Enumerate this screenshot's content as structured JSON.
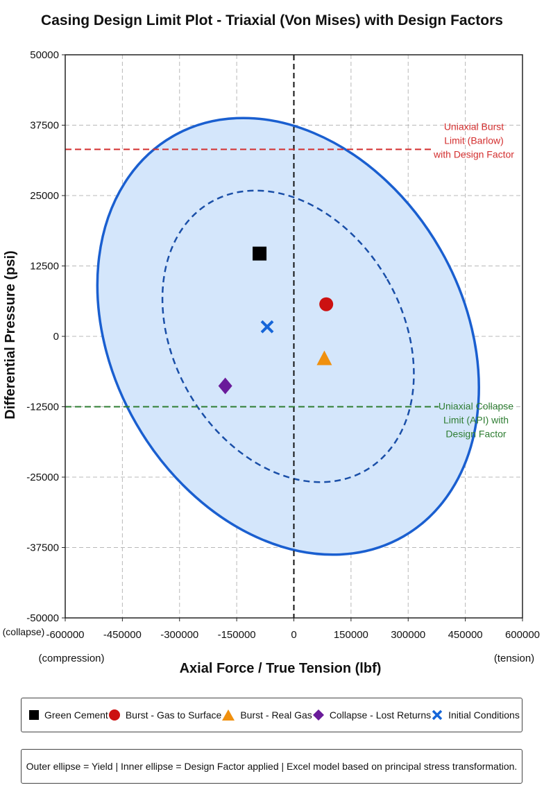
{
  "chart_data": {
    "type": "scatter",
    "title": "Casing Design Limit Plot - Triaxial (Von Mises) with Design Factors",
    "xlabel": "Axial Force / True Tension (lbf)",
    "ylabel": "Differential Pressure (psi)",
    "xlim": [
      -600000,
      600000
    ],
    "ylim": [
      -50000,
      50000
    ],
    "x_ticks": [
      -600000,
      -450000,
      -300000,
      -150000,
      0,
      150000,
      300000,
      450000,
      600000
    ],
    "y_ticks": [
      50000,
      37500,
      25000,
      12500,
      0,
      -12500,
      -25000,
      -37500,
      -50000
    ],
    "x_tick_labels": [
      "-600000",
      "-450000",
      "-300000",
      "-150000",
      "0",
      "150000",
      "300000",
      "450000",
      "600000"
    ],
    "y_tick_labels": [
      "50000",
      "37500",
      "25000",
      "12500",
      "0",
      "-12500",
      "-25000",
      "-37500",
      "-50000"
    ],
    "x_end_labels": {
      "left": "(compression)",
      "right": "(tension)"
    },
    "y_end_label": "(collapse)",
    "grid": true,
    "legend_position": "bottom",
    "series": [
      {
        "name": "Green Cement",
        "marker": "square",
        "color": "#000000",
        "x": -90000,
        "y": 14700
      },
      {
        "name": "Burst - Gas to Surface",
        "marker": "circle",
        "color": "#cc1111",
        "x": 85000,
        "y": 5700
      },
      {
        "name": "Burst - Real Gas",
        "marker": "triangle",
        "color": "#f0900e",
        "x": 80000,
        "y": -4000
      },
      {
        "name": "Collapse - Lost Returns",
        "marker": "diamond",
        "color": "#6a1b9a",
        "x": -180000,
        "y": -8800
      },
      {
        "name": "Initial Conditions",
        "marker": "x",
        "color": "#1565d8",
        "x": -70000,
        "y": 1700
      }
    ],
    "limit_lines": [
      {
        "label_lines": [
          "Uniaxial Burst",
          "Limit (Barlow)",
          "with Design Factor"
        ],
        "y": 33200,
        "color": "#d32f2f",
        "x_end": 365000
      },
      {
        "label_lines": [
          "Uniaxial Collapse",
          "Limit (API) with",
          "Design Factor"
        ],
        "y": -12500,
        "color": "#2e7d32",
        "x_end": 380000
      }
    ],
    "ellipses": [
      {
        "role": "yield",
        "cx": -15000,
        "cy": 0,
        "rx": 460000,
        "ry": 41000,
        "rotate_deg": -30,
        "stroke": "#1a5fd0",
        "fill": "#d4e6fb",
        "dashed": false
      },
      {
        "role": "design-factor",
        "cx": -15000,
        "cy": 0,
        "rx": 300000,
        "ry": 27500,
        "rotate_deg": -30,
        "stroke": "#1a4fa8",
        "fill": "none",
        "dashed": true
      }
    ]
  },
  "legend": {
    "items": [
      {
        "label": "Green Cement",
        "icon": "square-icon"
      },
      {
        "label": "Burst - Gas to Surface",
        "icon": "circle-icon"
      },
      {
        "label": "Burst - Real Gas",
        "icon": "triangle-icon"
      },
      {
        "label": "Collapse - Lost Returns",
        "icon": "diamond-icon"
      },
      {
        "label": "Initial Conditions",
        "icon": "x-icon"
      }
    ]
  },
  "note": "Outer ellipse = Yield | Inner ellipse = Design Factor applied | Excel model based on principal stress transformation."
}
